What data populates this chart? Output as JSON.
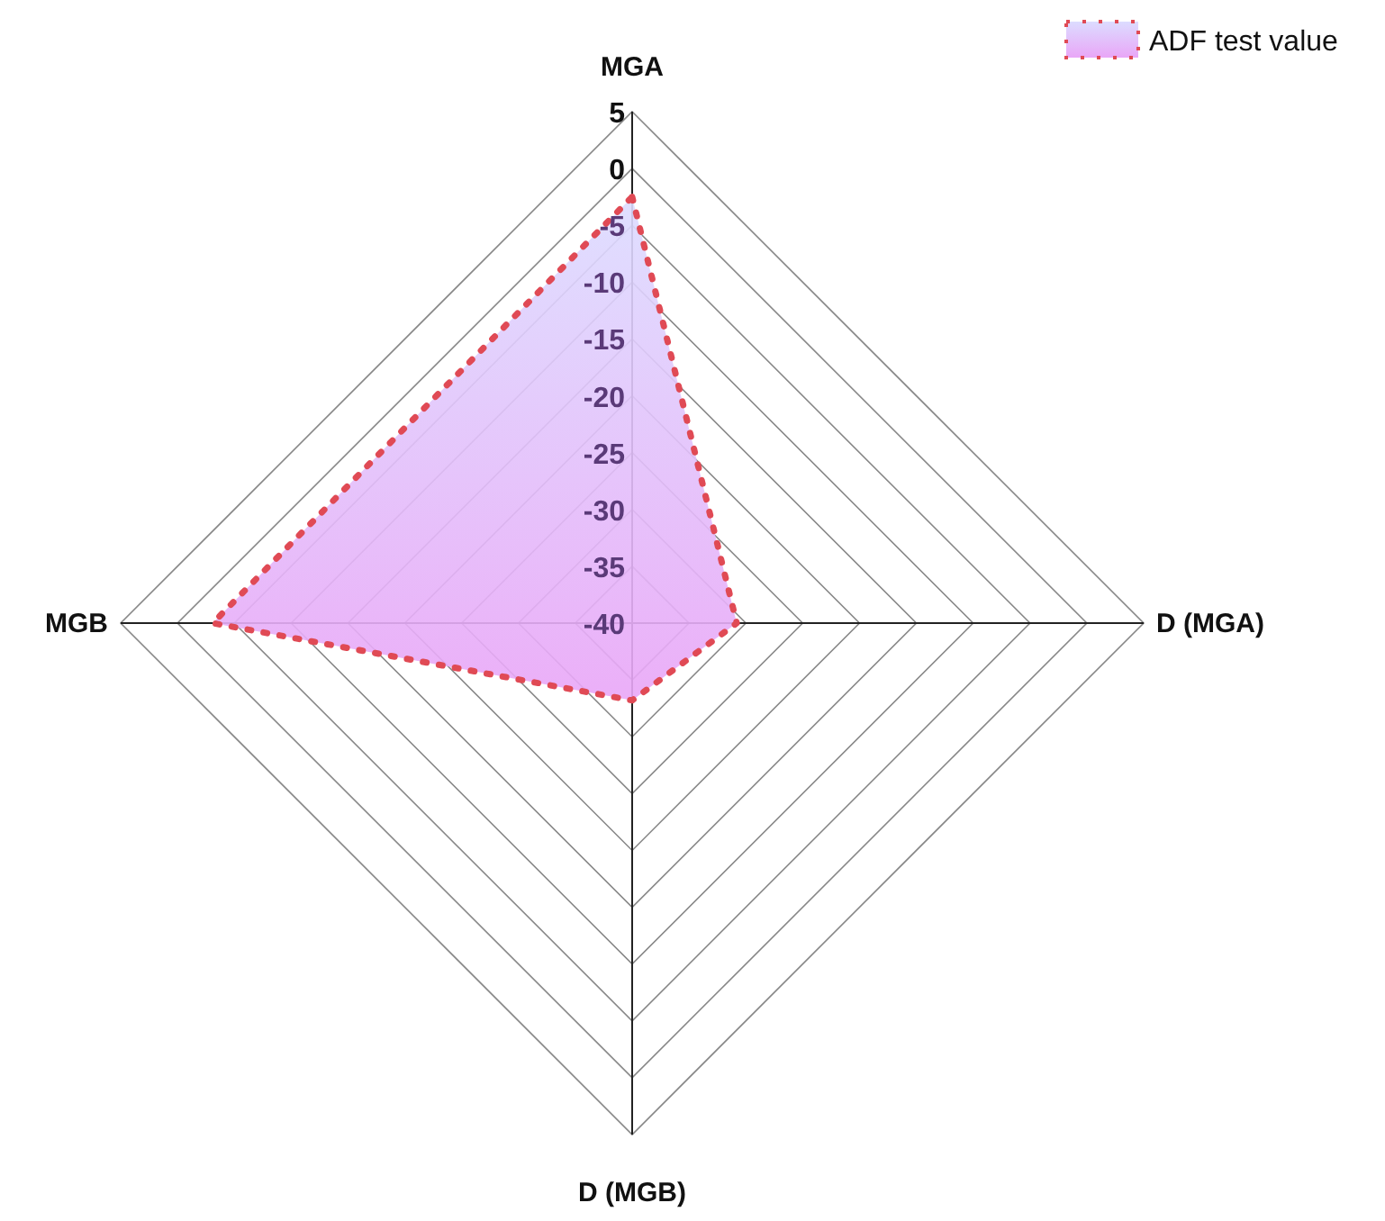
{
  "chart_data": {
    "type": "radar",
    "categories": [
      "MGA",
      "D (MGA)",
      "D (MGB)",
      "MGB"
    ],
    "series": [
      {
        "name": "ADF test value",
        "color": "#e04a55",
        "values": [
          -2.5,
          -30.8,
          -33.2,
          -3.1
        ]
      }
    ],
    "ylim": [
      -40,
      5
    ],
    "yticks": [
      -40,
      -35,
      -30,
      -25,
      -20,
      -15,
      -10,
      -5,
      0,
      5
    ],
    "legend": "top right",
    "line_style": "dotted",
    "marker": "none"
  }
}
